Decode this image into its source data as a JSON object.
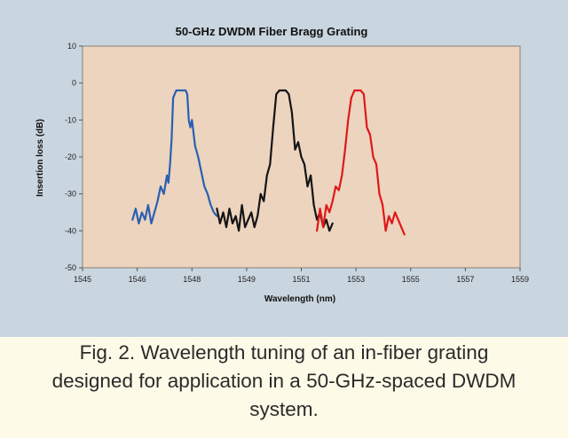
{
  "chart_data": {
    "type": "line",
    "title": "50-GHz DWDM Fiber Bragg Grating",
    "xlabel": "Wavelength (nm)",
    "ylabel": "Insertion loss (dB)",
    "xlim": [
      1545,
      1559
    ],
    "ylim": [
      -50,
      10
    ],
    "xticks": [
      "1545",
      "1546",
      "1548",
      "1549",
      "1551",
      "1553",
      "1555",
      "1557",
      "1559"
    ],
    "yticks": [
      "10",
      "0",
      "-10",
      "-20",
      "-30",
      "-40",
      "-50"
    ],
    "grid": false,
    "legend": "none",
    "colors": {
      "plot_bg": "#ecd4bf",
      "panel_bg": "#c9d5df"
    },
    "series": [
      {
        "color": "#2a5fb3",
        "x": [
          1546.6,
          1546.7,
          1546.8,
          1546.9,
          1547.0,
          1547.1,
          1547.2,
          1547.3,
          1547.4,
          1547.5,
          1547.6,
          1547.7,
          1547.75,
          1547.8,
          1547.85,
          1547.9,
          1548.0,
          1548.1,
          1548.2,
          1548.3,
          1548.35,
          1548.4,
          1548.45,
          1548.5,
          1548.6,
          1548.7,
          1548.8,
          1548.9,
          1549.0,
          1549.1,
          1549.2,
          1549.3
        ],
        "y": [
          -37,
          -34,
          -38,
          -35,
          -37,
          -33,
          -38,
          -35,
          -32,
          -28,
          -30,
          -25,
          -27,
          -22,
          -15,
          -4,
          -2,
          -2,
          -2,
          -2,
          -3,
          -10,
          -12,
          -10,
          -17,
          -20,
          -24,
          -28,
          -30,
          -33,
          -35,
          -36
        ]
      },
      {
        "color": "#141414",
        "x": [
          1549.3,
          1549.4,
          1549.5,
          1549.6,
          1549.7,
          1549.8,
          1549.9,
          1550.0,
          1550.1,
          1550.2,
          1550.3,
          1550.4,
          1550.5,
          1550.6,
          1550.7,
          1550.8,
          1550.9,
          1551.0,
          1551.1,
          1551.2,
          1551.3,
          1551.4,
          1551.5,
          1551.6,
          1551.7,
          1551.8,
          1551.9,
          1552.0,
          1552.1,
          1552.2,
          1552.3,
          1552.4,
          1552.5,
          1552.6,
          1552.7,
          1552.8,
          1552.9,
          1553.0
        ],
        "y": [
          -34,
          -38,
          -35,
          -39,
          -34,
          -38,
          -36,
          -40,
          -33,
          -39,
          -37,
          -35,
          -39,
          -36,
          -30,
          -32,
          -25,
          -22,
          -12,
          -3,
          -2,
          -2,
          -2,
          -3,
          -8,
          -18,
          -16,
          -20,
          -22,
          -28,
          -25,
          -33,
          -37,
          -35,
          -39,
          -37,
          -40,
          -38
        ]
      },
      {
        "color": "#e01818",
        "x": [
          1552.5,
          1552.6,
          1552.7,
          1552.8,
          1552.9,
          1553.0,
          1553.1,
          1553.2,
          1553.3,
          1553.4,
          1553.5,
          1553.6,
          1553.7,
          1553.8,
          1553.9,
          1554.0,
          1554.1,
          1554.2,
          1554.3,
          1554.4,
          1554.5,
          1554.6,
          1554.7,
          1554.8,
          1554.9,
          1555.0,
          1555.1,
          1555.2,
          1555.3
        ],
        "y": [
          -40,
          -34,
          -39,
          -33,
          -35,
          -32,
          -28,
          -29,
          -25,
          -18,
          -10,
          -4,
          -2,
          -2,
          -2,
          -3,
          -12,
          -14,
          -20,
          -22,
          -30,
          -33,
          -40,
          -36,
          -38,
          -35,
          -37,
          -39,
          -41
        ]
      }
    ]
  },
  "caption": {
    "line1": "Fig. 2. Wavelength tuning of an in-fiber grating",
    "line2": "designed for application in a 50-GHz-spaced DWDM",
    "line3": "system."
  }
}
